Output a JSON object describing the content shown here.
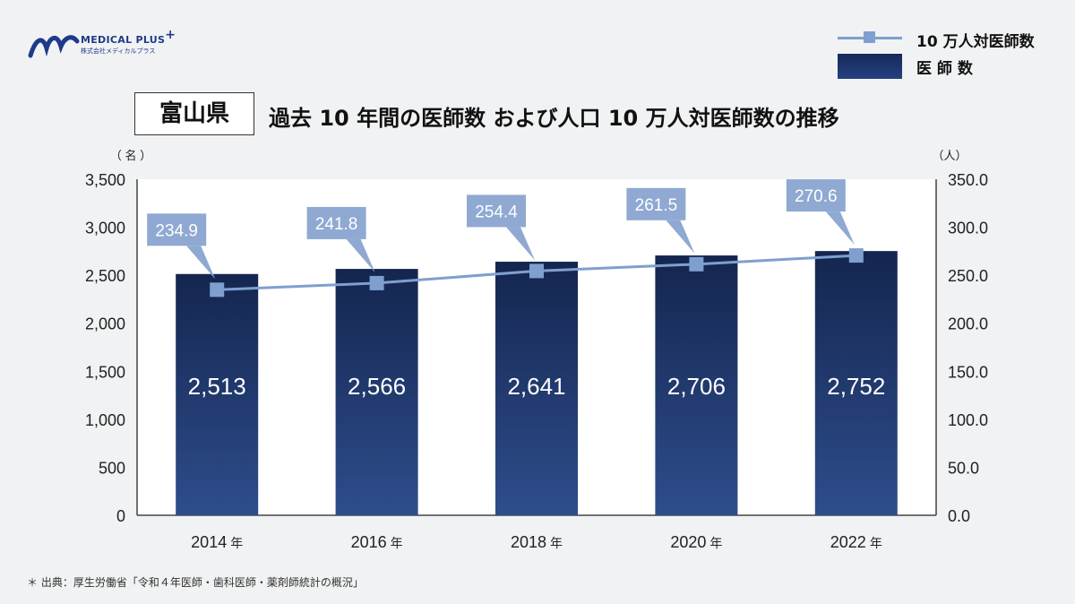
{
  "logo": {
    "name": "MEDICAL PLUS",
    "plus_mark": "+",
    "subtitle": "株式会社メディカルプラス"
  },
  "legend": {
    "line_label": "10 万人対医師数",
    "bar_label": "医 師 数"
  },
  "title": {
    "prefecture": "富山県",
    "main": "過去 10 年間の医師数 および人口 10 万人対医師数の推移"
  },
  "source": "＊ 出典：厚生労働省「令和４年医師・歯科医師・薬剤師統計の概況」",
  "colors": {
    "bar_top": "#14264f",
    "bar_bottom": "#2e4d8c",
    "line": "#7f9fcf",
    "callout": "#8fa9d2",
    "plot_bg": "#ffffff",
    "page_bg": "#f1f2f3"
  },
  "chart_data": {
    "type": "bar",
    "categories": [
      "2014",
      "2016",
      "2018",
      "2020",
      "2022"
    ],
    "category_suffix": "年",
    "series": [
      {
        "name": "医 師 数",
        "type": "bar",
        "axis": "left",
        "values": [
          2513,
          2566,
          2641,
          2706,
          2752
        ],
        "labels": [
          "2,513",
          "2,566",
          "2,641",
          "2,706",
          "2,752"
        ]
      },
      {
        "name": "10 万人対医師数",
        "type": "line",
        "axis": "right",
        "values": [
          234.9,
          241.8,
          254.4,
          261.5,
          270.6
        ],
        "labels": [
          "234.9",
          "241.8",
          "254.4",
          "261.5",
          "270.6"
        ]
      }
    ],
    "left_axis": {
      "unit": "（ 名 ）",
      "range": [
        0,
        3500
      ],
      "ticks": [
        "0",
        "500",
        "1,000",
        "1,500",
        "2,000",
        "2,500",
        "3,000",
        "3,500"
      ]
    },
    "right_axis": {
      "unit": "（人）",
      "range": [
        0,
        350
      ],
      "ticks": [
        "0.0",
        "50.0",
        "100.0",
        "150.0",
        "200.0",
        "250.0",
        "300.0",
        "350.0"
      ]
    },
    "grid": false,
    "legend_position": "top-right"
  }
}
